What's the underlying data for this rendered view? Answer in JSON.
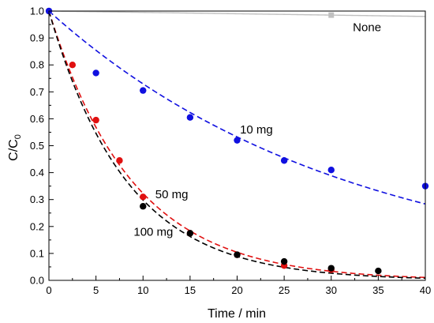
{
  "chart_data": {
    "type": "scatter",
    "xlabel": "Time / min",
    "ylabel_main": "C/C",
    "ylabel_sub": "0",
    "xlim": [
      0,
      40
    ],
    "ylim": [
      0,
      1.0
    ],
    "xticks": [
      "0",
      "5",
      "10",
      "15",
      "20",
      "25",
      "30",
      "35",
      "40"
    ],
    "yticks": [
      "0.0",
      "0.1",
      "0.2",
      "0.3",
      "0.4",
      "0.5",
      "0.6",
      "0.7",
      "0.8",
      "0.9",
      "1.0"
    ],
    "grid": false,
    "legend": "inline labels",
    "series": [
      {
        "name": "None",
        "color": "#c0c0c0",
        "marker": "square",
        "points": [
          {
            "x": 0,
            "y": 1.0
          },
          {
            "x": 30,
            "y": 0.985
          }
        ],
        "fit": {
          "model": "linear",
          "y0": 1.0,
          "slope": -0.0005,
          "style": "solid"
        }
      },
      {
        "name": "10 mg",
        "color": "#1010e0",
        "marker": "circle",
        "points": [
          {
            "x": 0,
            "y": 1.0
          },
          {
            "x": 5,
            "y": 0.77
          },
          {
            "x": 10,
            "y": 0.705
          },
          {
            "x": 15,
            "y": 0.605
          },
          {
            "x": 20,
            "y": 0.52
          },
          {
            "x": 25,
            "y": 0.445
          },
          {
            "x": 30,
            "y": 0.41
          },
          {
            "x": 40,
            "y": 0.35
          }
        ],
        "fit": {
          "model": "exp",
          "y0": 1.0,
          "k": 0.0315,
          "style": "dashed"
        }
      },
      {
        "name": "50 mg",
        "color": "#e01010",
        "marker": "circle",
        "points": [
          {
            "x": 2.5,
            "y": 0.8
          },
          {
            "x": 5,
            "y": 0.595
          },
          {
            "x": 7.5,
            "y": 0.445
          },
          {
            "x": 10,
            "y": 0.31
          },
          {
            "x": 15,
            "y": 0.175
          },
          {
            "x": 20,
            "y": 0.095
          },
          {
            "x": 25,
            "y": 0.055
          },
          {
            "x": 30,
            "y": 0.04
          }
        ],
        "fit": {
          "model": "exp",
          "y0": 1.0,
          "k": 0.113,
          "style": "dashed"
        }
      },
      {
        "name": "100 mg",
        "color": "#000000",
        "marker": "circle",
        "points": [
          {
            "x": 10,
            "y": 0.275
          },
          {
            "x": 15,
            "y": 0.175
          },
          {
            "x": 20,
            "y": 0.095
          },
          {
            "x": 25,
            "y": 0.07
          },
          {
            "x": 30,
            "y": 0.045
          },
          {
            "x": 35,
            "y": 0.035
          }
        ],
        "fit": {
          "model": "exp",
          "y0": 1.0,
          "k": 0.121,
          "style": "dashed"
        }
      }
    ]
  }
}
